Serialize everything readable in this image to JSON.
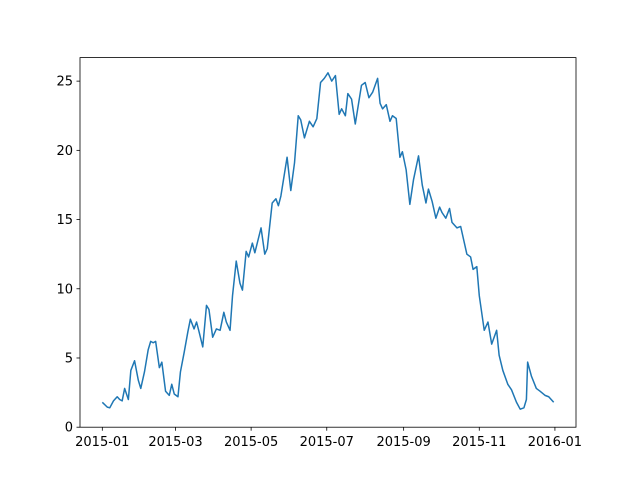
{
  "chart_data": {
    "type": "line",
    "color": "#1f77b4",
    "xlim": [
      "2014-12-14",
      "2016-01-18"
    ],
    "ylim": [
      0,
      26.7
    ],
    "xticks": [
      {
        "value": "2015-01-01",
        "label": "2015-01"
      },
      {
        "value": "2015-03-01",
        "label": "2015-03"
      },
      {
        "value": "2015-05-01",
        "label": "2015-05"
      },
      {
        "value": "2015-07-01",
        "label": "2015-07"
      },
      {
        "value": "2015-09-01",
        "label": "2015-09"
      },
      {
        "value": "2015-11-01",
        "label": "2015-11"
      },
      {
        "value": "2016-01-01",
        "label": "2016-01"
      }
    ],
    "yticks": [
      0,
      5,
      10,
      15,
      20,
      25
    ],
    "x": [
      "2015-01-01",
      "2015-01-05",
      "2015-01-07",
      "2015-01-10",
      "2015-01-13",
      "2015-01-15",
      "2015-01-17",
      "2015-01-19",
      "2015-01-22",
      "2015-01-24",
      "2015-01-27",
      "2015-01-30",
      "2015-02-01",
      "2015-02-04",
      "2015-02-07",
      "2015-02-09",
      "2015-02-11",
      "2015-02-13",
      "2015-02-16",
      "2015-02-18",
      "2015-02-21",
      "2015-02-24",
      "2015-02-26",
      "2015-02-28",
      "2015-03-03",
      "2015-03-05",
      "2015-03-08",
      "2015-03-11",
      "2015-03-13",
      "2015-03-16",
      "2015-03-18",
      "2015-03-20",
      "2015-03-23",
      "2015-03-26",
      "2015-03-28",
      "2015-03-31",
      "2015-04-03",
      "2015-04-06",
      "2015-04-09",
      "2015-04-11",
      "2015-04-14",
      "2015-04-16",
      "2015-04-19",
      "2015-04-22",
      "2015-04-24",
      "2015-04-27",
      "2015-04-29",
      "2015-05-02",
      "2015-05-04",
      "2015-05-09",
      "2015-05-12",
      "2015-05-14",
      "2015-05-18",
      "2015-05-21",
      "2015-05-23",
      "2015-05-25",
      "2015-05-30",
      "2015-06-02",
      "2015-06-05",
      "2015-06-08",
      "2015-06-10",
      "2015-06-13",
      "2015-06-17",
      "2015-06-20",
      "2015-06-23",
      "2015-06-26",
      "2015-06-29",
      "2015-07-02",
      "2015-07-05",
      "2015-07-08",
      "2015-07-11",
      "2015-07-13",
      "2015-07-16",
      "2015-07-18",
      "2015-07-21",
      "2015-07-24",
      "2015-07-29",
      "2015-08-01",
      "2015-08-04",
      "2015-08-07",
      "2015-08-11",
      "2015-08-13",
      "2015-08-15",
      "2015-08-18",
      "2015-08-21",
      "2015-08-23",
      "2015-08-26",
      "2015-08-29",
      "2015-08-31",
      "2015-09-03",
      "2015-09-06",
      "2015-09-09",
      "2015-09-13",
      "2015-09-16",
      "2015-09-19",
      "2015-09-21",
      "2015-09-24",
      "2015-09-27",
      "2015-09-30",
      "2015-10-02",
      "2015-10-05",
      "2015-10-08",
      "2015-10-10",
      "2015-10-14",
      "2015-10-17",
      "2015-10-22",
      "2015-10-25",
      "2015-10-27",
      "2015-10-30",
      "2015-11-01",
      "2015-11-05",
      "2015-11-08",
      "2015-11-11",
      "2015-11-15",
      "2015-11-17",
      "2015-11-20",
      "2015-11-24",
      "2015-11-27",
      "2015-12-01",
      "2015-12-04",
      "2015-12-07",
      "2015-12-09",
      "2015-12-10",
      "2015-12-13",
      "2015-12-17",
      "2015-12-20",
      "2015-12-24",
      "2015-12-27",
      "2015-12-31"
    ],
    "values": [
      1.8,
      1.45,
      1.4,
      1.9,
      2.2,
      2.0,
      1.9,
      2.8,
      2.0,
      4.1,
      4.8,
      3.4,
      2.8,
      4.0,
      5.6,
      6.2,
      6.1,
      6.2,
      4.3,
      4.7,
      2.6,
      2.3,
      3.1,
      2.4,
      2.2,
      4.0,
      5.4,
      6.9,
      7.8,
      7.1,
      7.6,
      6.9,
      5.8,
      8.8,
      8.5,
      6.5,
      7.1,
      7.0,
      8.3,
      7.6,
      7.0,
      9.5,
      12.0,
      10.4,
      9.9,
      12.7,
      12.3,
      13.3,
      12.6,
      14.4,
      12.5,
      12.9,
      16.2,
      16.5,
      16.0,
      16.7,
      19.5,
      17.1,
      19.1,
      22.5,
      22.2,
      20.9,
      22.1,
      21.7,
      22.3,
      24.9,
      25.2,
      25.6,
      25.0,
      25.4,
      22.6,
      23.0,
      22.5,
      24.1,
      23.7,
      21.9,
      24.7,
      24.9,
      23.8,
      24.2,
      25.2,
      23.4,
      23.0,
      23.3,
      22.1,
      22.5,
      22.3,
      19.5,
      19.9,
      18.6,
      16.1,
      17.9,
      19.6,
      17.5,
      16.2,
      17.2,
      16.3,
      15.1,
      15.9,
      15.5,
      15.1,
      15.8,
      14.8,
      14.4,
      14.5,
      12.5,
      12.3,
      11.4,
      11.6,
      9.5,
      7.0,
      7.6,
      6.0,
      7.0,
      5.2,
      4.1,
      3.1,
      2.7,
      1.8,
      1.3,
      1.4,
      2.0,
      4.7,
      3.7,
      2.8,
      2.6,
      2.3,
      2.2,
      1.8
    ]
  }
}
